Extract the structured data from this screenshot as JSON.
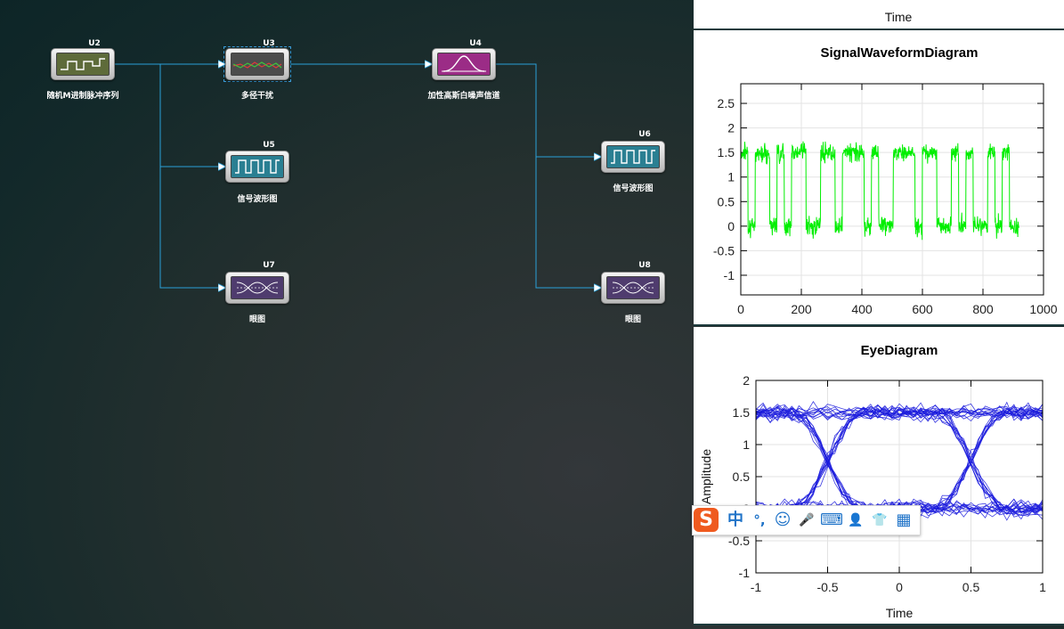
{
  "blocks": [
    {
      "id": "U2",
      "label": "随机M进制脉冲序列",
      "icon": "square-pulse-icon",
      "screen": "#5e6b3a"
    },
    {
      "id": "U3",
      "label": "多径干扰",
      "icon": "multipath-waves-icon",
      "screen": "#4c4c4c"
    },
    {
      "id": "U4",
      "label": "加性高斯白噪声信道",
      "icon": "gaussian-curve-icon",
      "screen": "#9b2c86"
    },
    {
      "id": "U5",
      "label": "信号波形图",
      "icon": "square-wave-icon",
      "screen": "#2a7f92"
    },
    {
      "id": "U6",
      "label": "信号波形图",
      "icon": "square-wave-icon",
      "screen": "#2a7f92"
    },
    {
      "id": "U7",
      "label": "眼图",
      "icon": "eye-pattern-icon",
      "screen": "#4f3c6e"
    },
    {
      "id": "U8",
      "label": "眼图",
      "icon": "eye-pattern-icon",
      "screen": "#4f3c6e"
    }
  ],
  "panel_header": {
    "title": "Time"
  },
  "colors": {
    "wire": "#2aa0d8",
    "wave": "#00ee00",
    "eye": "#1c1cdd",
    "brand": "#ef5a1f"
  },
  "chart_data": [
    {
      "type": "line",
      "title": "SignalWaveformDiagram",
      "xlim": [
        0,
        1000
      ],
      "ylim": [
        -1.4,
        2.9
      ],
      "xticks": [
        0,
        200,
        400,
        600,
        800,
        1000
      ],
      "yticks": [
        -1,
        -0.5,
        0,
        0.5,
        1,
        1.5,
        2,
        2.5
      ],
      "grid": true,
      "series": [
        {
          "bits": [
            1,
            0,
            1,
            1,
            0,
            1,
            0,
            1,
            1,
            0,
            0,
            1,
            1,
            0,
            1,
            1,
            1,
            0,
            1,
            0,
            0,
            1,
            1,
            1,
            0,
            1,
            1,
            0,
            0,
            1,
            0,
            1,
            0,
            0,
            1,
            0,
            1,
            0,
            0
          ],
          "samples_per_bit": 24,
          "high": 1.5,
          "low": 0,
          "noise_sd": 0.18,
          "n_points": 920
        }
      ]
    },
    {
      "type": "line",
      "title": "EyeDiagram",
      "xlabel": "Time",
      "ylabel": "Amplitude",
      "xlim": [
        -1,
        1
      ],
      "ylim": [
        -1,
        2
      ],
      "xticks": [
        -1,
        -0.5,
        0,
        0.5,
        1
      ],
      "yticks": [
        -1,
        -0.5,
        0,
        0.5,
        1,
        1.5,
        2
      ],
      "grid": true,
      "series": [
        {
          "traces": 40,
          "high": 1.5,
          "low": 0,
          "crossings": [
            -0.5,
            0.5
          ],
          "noise_sd": 0.12
        }
      ]
    }
  ],
  "ime_toolbar": {
    "logo": "S",
    "items": [
      {
        "name": "chinese-mode",
        "glyph": "中"
      },
      {
        "name": "punctuation-mode",
        "glyph": "°,"
      },
      {
        "name": "emoji-icon",
        "glyph": "☺"
      },
      {
        "name": "microphone-icon",
        "glyph": "🎤"
      },
      {
        "name": "keyboard-icon",
        "glyph": "⌨"
      },
      {
        "name": "user-card-icon",
        "glyph": "👤"
      },
      {
        "name": "skin-shirt-icon",
        "glyph": "👕"
      },
      {
        "name": "toolbox-icon",
        "glyph": "▦"
      }
    ]
  }
}
